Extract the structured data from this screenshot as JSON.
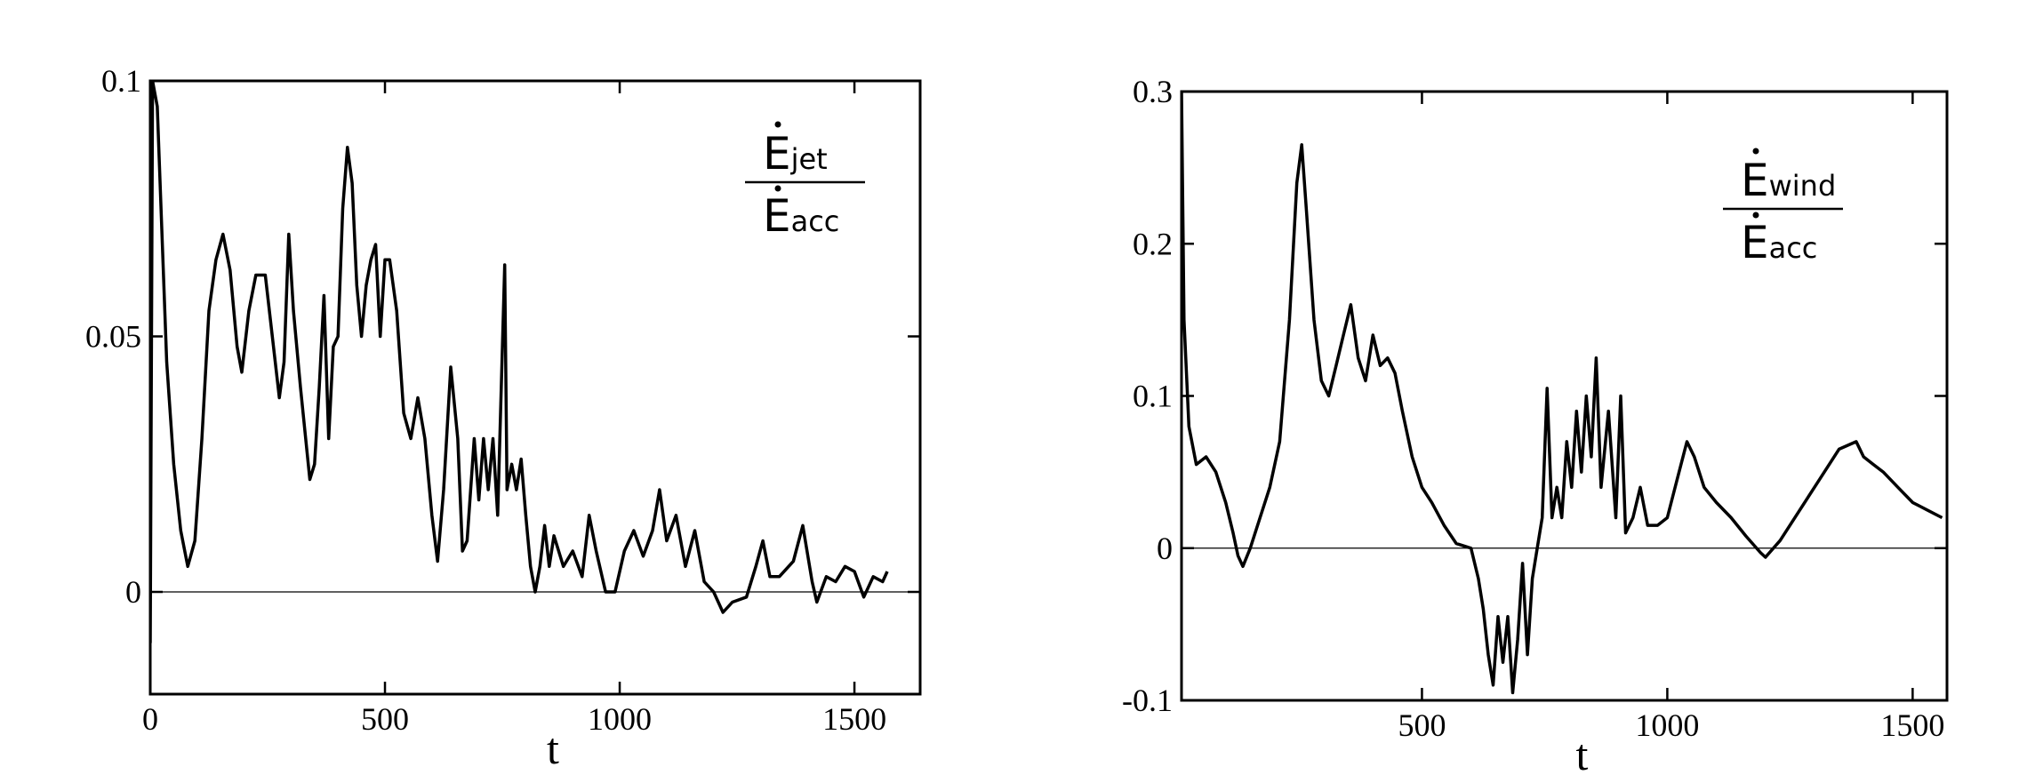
{
  "chart_data": [
    {
      "type": "line",
      "xlabel": "t",
      "annotation": {
        "numerator": "E",
        "numerator_sub": "jet",
        "denominator": "E",
        "denominator_sub": "acc"
      },
      "xlim": [
        0,
        1640
      ],
      "xticks": [
        0,
        500,
        1000,
        1500
      ],
      "ylim": [
        -0.02,
        0.1
      ],
      "yticks": [
        0,
        0.05,
        0.1
      ],
      "reference_line": 0,
      "color": "#000000",
      "x": [
        0,
        5,
        15,
        25,
        35,
        50,
        65,
        80,
        95,
        110,
        125,
        140,
        155,
        170,
        185,
        195,
        210,
        225,
        245,
        260,
        275,
        285,
        295,
        305,
        320,
        340,
        350,
        360,
        370,
        380,
        390,
        400,
        410,
        420,
        430,
        440,
        450,
        460,
        470,
        480,
        490,
        500,
        510,
        525,
        540,
        555,
        570,
        585,
        600,
        612,
        625,
        640,
        655,
        665,
        675,
        690,
        700,
        710,
        720,
        730,
        740,
        755,
        760,
        770,
        780,
        790,
        800,
        810,
        820,
        830,
        840,
        850,
        860,
        880,
        900,
        920,
        935,
        950,
        970,
        990,
        1010,
        1030,
        1050,
        1070,
        1085,
        1100,
        1120,
        1140,
        1160,
        1180,
        1200,
        1220,
        1240,
        1270,
        1290,
        1305,
        1320,
        1340,
        1370,
        1390,
        1410,
        1420,
        1440,
        1460,
        1480,
        1500,
        1520,
        1540,
        1560,
        1570
      ],
      "values": [
        -0.01,
        0.1,
        0.095,
        0.07,
        0.045,
        0.025,
        0.012,
        0.005,
        0.01,
        0.03,
        0.055,
        0.065,
        0.07,
        0.063,
        0.048,
        0.043,
        0.055,
        0.062,
        0.062,
        0.05,
        0.038,
        0.045,
        0.07,
        0.055,
        0.04,
        0.022,
        0.025,
        0.04,
        0.058,
        0.03,
        0.048,
        0.05,
        0.075,
        0.087,
        0.08,
        0.06,
        0.05,
        0.06,
        0.065,
        0.068,
        0.05,
        0.065,
        0.065,
        0.055,
        0.035,
        0.03,
        0.038,
        0.03,
        0.015,
        0.006,
        0.02,
        0.044,
        0.03,
        0.008,
        0.01,
        0.03,
        0.018,
        0.03,
        0.02,
        0.03,
        0.015,
        0.064,
        0.02,
        0.025,
        0.02,
        0.026,
        0.015,
        0.005,
        0.0,
        0.005,
        0.013,
        0.005,
        0.011,
        0.005,
        0.008,
        0.003,
        0.015,
        0.008,
        0.0,
        0.0,
        0.008,
        0.012,
        0.007,
        0.012,
        0.02,
        0.01,
        0.015,
        0.005,
        0.012,
        0.002,
        0.0,
        -0.004,
        -0.002,
        -0.001,
        0.005,
        0.01,
        0.003,
        0.003,
        0.006,
        0.013,
        0.002,
        -0.002,
        0.003,
        0.002,
        0.005,
        0.004,
        -0.001,
        0.003,
        0.002,
        0.004
      ]
    },
    {
      "type": "line",
      "xlabel": "t",
      "annotation": {
        "numerator": "E",
        "numerator_sub": "wind",
        "denominator": "E",
        "denominator_sub": "acc"
      },
      "xlim": [
        10,
        1570
      ],
      "xticks": [
        500,
        1000,
        1500
      ],
      "ylim": [
        -0.1,
        0.3
      ],
      "yticks": [
        -0.1,
        0,
        0.1,
        0.2,
        0.3
      ],
      "reference_line": 0,
      "color": "#000000",
      "x": [
        10,
        15,
        25,
        40,
        60,
        80,
        100,
        115,
        125,
        135,
        150,
        170,
        190,
        210,
        230,
        245,
        255,
        265,
        280,
        295,
        310,
        325,
        340,
        355,
        370,
        385,
        400,
        415,
        430,
        445,
        460,
        480,
        500,
        520,
        545,
        570,
        600,
        615,
        625,
        635,
        645,
        655,
        665,
        675,
        685,
        695,
        705,
        715,
        725,
        735,
        745,
        755,
        765,
        775,
        785,
        795,
        805,
        815,
        825,
        835,
        845,
        855,
        865,
        880,
        895,
        905,
        915,
        930,
        945,
        960,
        980,
        1000,
        1020,
        1040,
        1055,
        1075,
        1100,
        1130,
        1160,
        1190,
        1200,
        1230,
        1270,
        1310,
        1350,
        1385,
        1400,
        1420,
        1440,
        1470,
        1500,
        1530,
        1560
      ],
      "values": [
        0.3,
        0.15,
        0.08,
        0.055,
        0.06,
        0.05,
        0.03,
        0.01,
        -0.005,
        -0.012,
        0.0,
        0.02,
        0.04,
        0.07,
        0.15,
        0.24,
        0.265,
        0.22,
        0.15,
        0.11,
        0.1,
        0.12,
        0.14,
        0.16,
        0.125,
        0.11,
        0.14,
        0.12,
        0.125,
        0.115,
        0.09,
        0.06,
        0.04,
        0.03,
        0.015,
        0.003,
        0.0,
        -0.02,
        -0.04,
        -0.07,
        -0.09,
        -0.045,
        -0.075,
        -0.045,
        -0.095,
        -0.06,
        -0.01,
        -0.07,
        -0.02,
        0.0,
        0.02,
        0.105,
        0.02,
        0.04,
        0.02,
        0.07,
        0.04,
        0.09,
        0.05,
        0.1,
        0.06,
        0.125,
        0.04,
        0.09,
        0.02,
        0.1,
        0.01,
        0.02,
        0.04,
        0.015,
        0.015,
        0.02,
        0.045,
        0.07,
        0.06,
        0.04,
        0.03,
        0.02,
        0.008,
        -0.003,
        -0.006,
        0.005,
        0.025,
        0.045,
        0.065,
        0.07,
        0.06,
        0.055,
        0.05,
        0.04,
        0.03,
        0.025,
        0.02
      ]
    }
  ]
}
